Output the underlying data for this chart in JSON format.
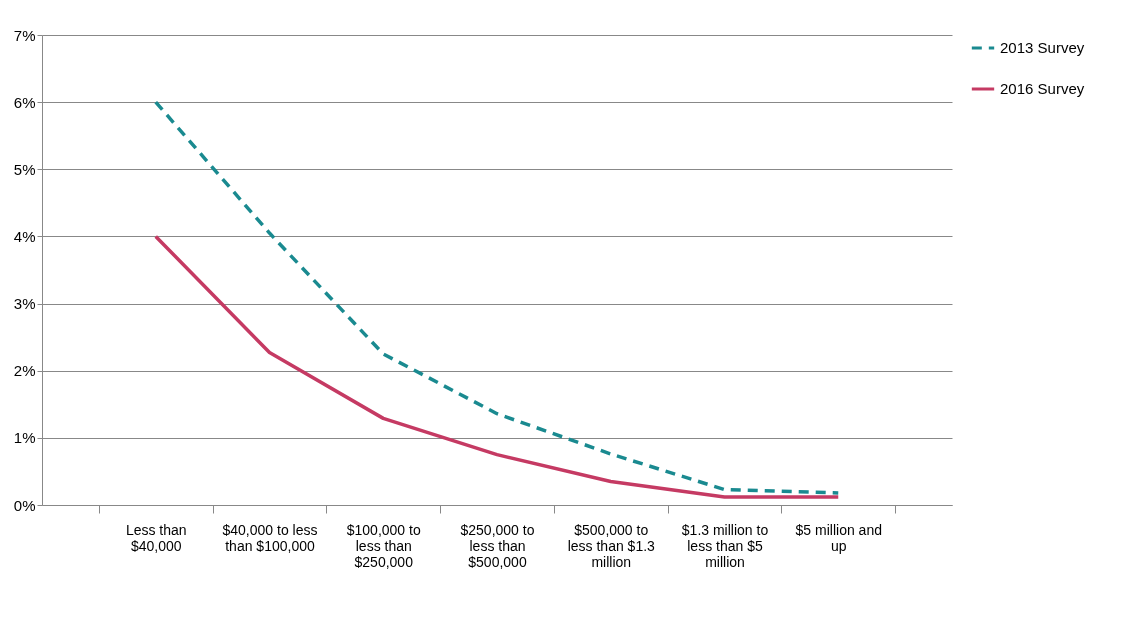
{
  "chart_data": {
    "type": "line",
    "categories": [
      "Less than $40,000",
      "$40,000 to less than $100,000",
      "$100,000 to less than $250,000",
      "$250,000 to less than $500,000",
      "$500,000 to less than $1.3 million",
      "$1.3 million to less than $5 million",
      "$5 million and up"
    ],
    "series": [
      {
        "name": "2013 Survey",
        "color": "#1a8a90",
        "line_style": "dashed",
        "values": [
          6.0,
          4.05,
          2.25,
          1.36,
          0.76,
          0.23,
          0.18
        ]
      },
      {
        "name": "2016 Survey",
        "color": "#c53a63",
        "line_style": "solid",
        "values": [
          4.0,
          2.27,
          1.29,
          0.75,
          0.35,
          0.12,
          0.12
        ]
      }
    ],
    "ylim": [
      0,
      7
    ],
    "yticks": [
      {
        "value": 0,
        "label": "0%"
      },
      {
        "value": 1,
        "label": "1%"
      },
      {
        "value": 2,
        "label": "2%"
      },
      {
        "value": 3,
        "label": "3%"
      },
      {
        "value": 4,
        "label": "4%"
      },
      {
        "value": 5,
        "label": "5%"
      },
      {
        "value": 6,
        "label": "6%"
      },
      {
        "value": 7,
        "label": "7%"
      }
    ],
    "grid": "y",
    "legend": "right",
    "marker": "none"
  }
}
